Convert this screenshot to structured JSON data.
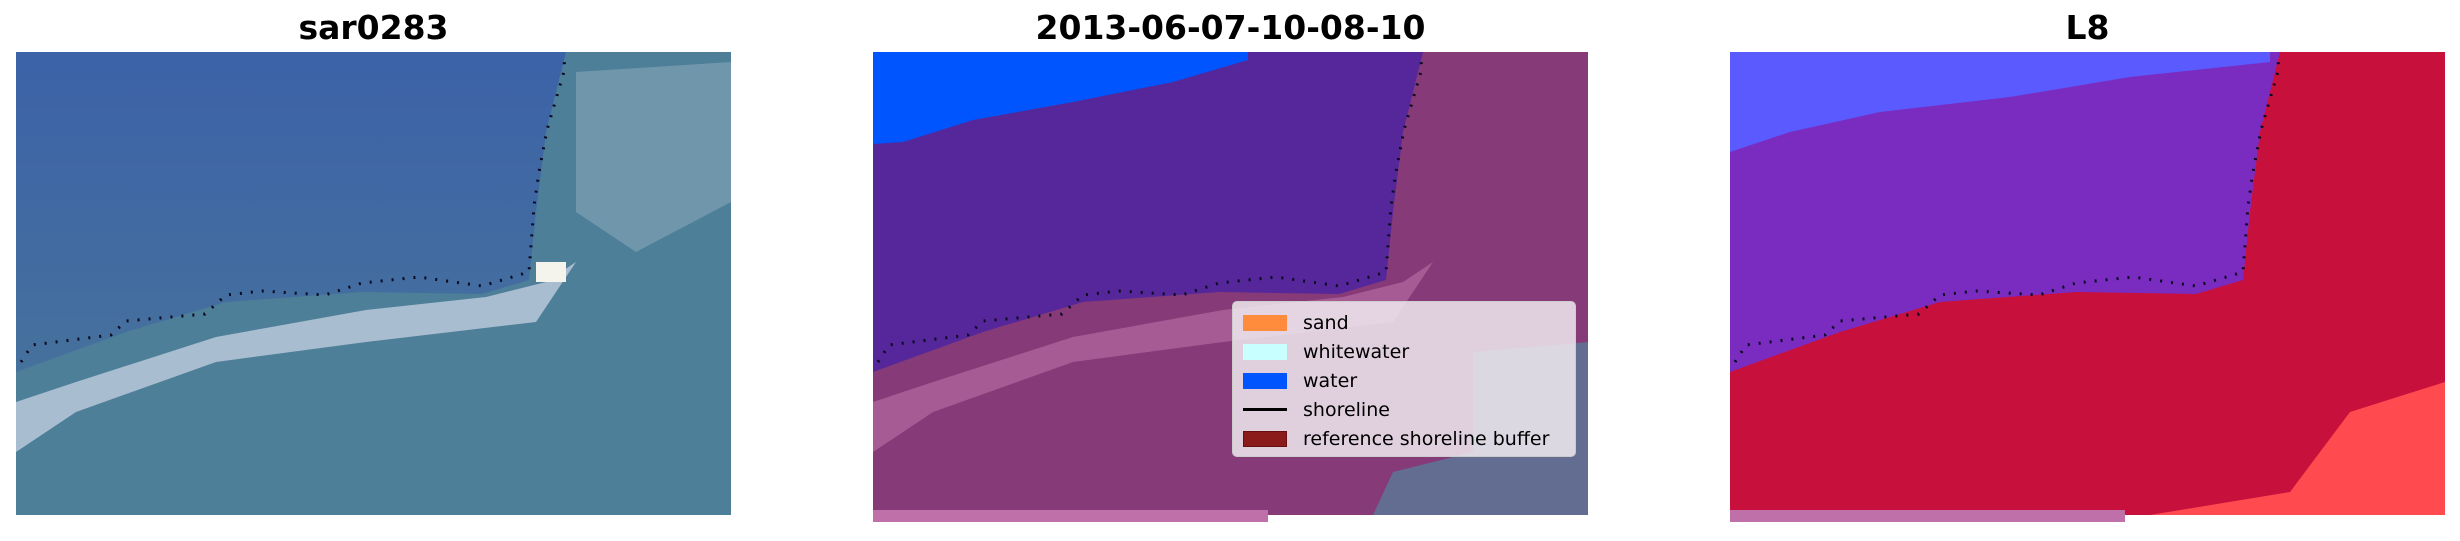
{
  "panels": [
    {
      "title": "sar0283",
      "kind": "rgb-image"
    },
    {
      "title": "2013-06-07-10-08-10",
      "kind": "classified-image"
    },
    {
      "title": "L8",
      "kind": "index-image"
    }
  ],
  "legend": {
    "items": [
      {
        "label": "sand",
        "color": "#ff8c3c"
      },
      {
        "label": "whitewater",
        "color": "#c8ffff"
      },
      {
        "label": "water",
        "color": "#0055ff"
      },
      {
        "label": "shoreline",
        "color": "#000000",
        "type": "line"
      },
      {
        "label": "reference shoreline buffer",
        "color": "#8b1a1a"
      }
    ]
  }
}
